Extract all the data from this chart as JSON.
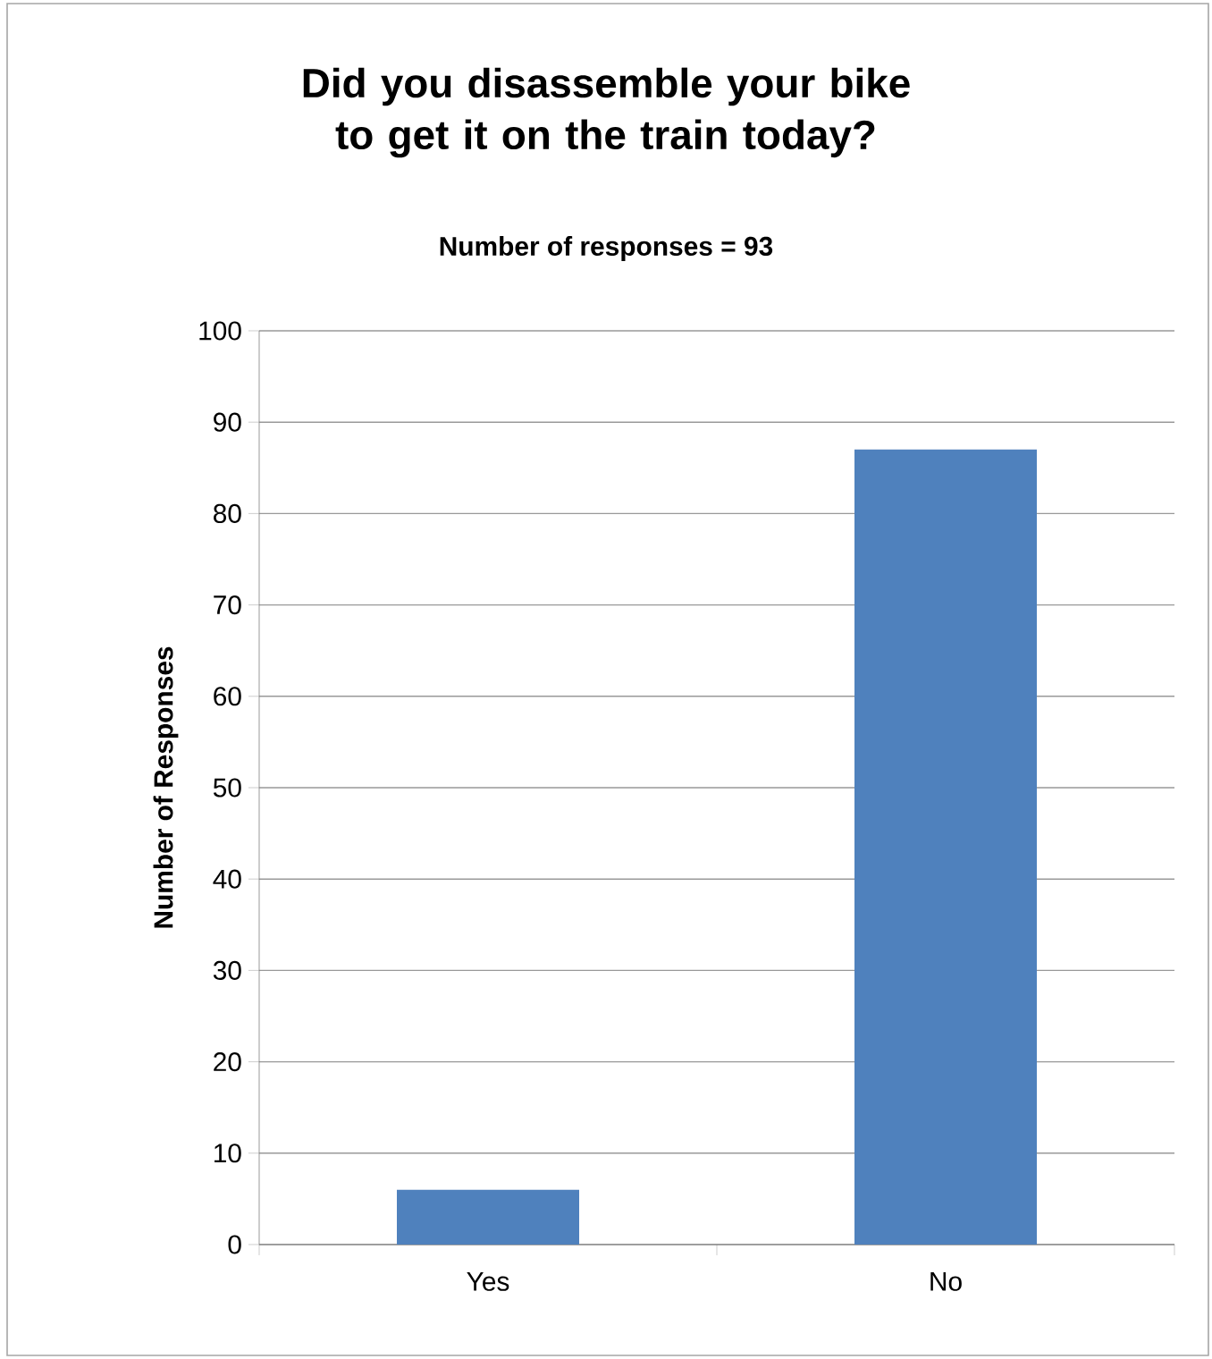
{
  "chart_data": {
    "type": "bar",
    "title": "Did you disassemble your bike to get it on the train today?",
    "subtitle": "Number of responses = 93",
    "ylabel": "Number of Responses",
    "categories": [
      "Yes",
      "No"
    ],
    "values": [
      6,
      87
    ],
    "color": "#4f81bd",
    "ylim": [
      0,
      100
    ],
    "yticks": [
      0,
      10,
      20,
      30,
      40,
      50,
      60,
      70,
      80,
      90,
      100
    ],
    "grid": "y"
  }
}
